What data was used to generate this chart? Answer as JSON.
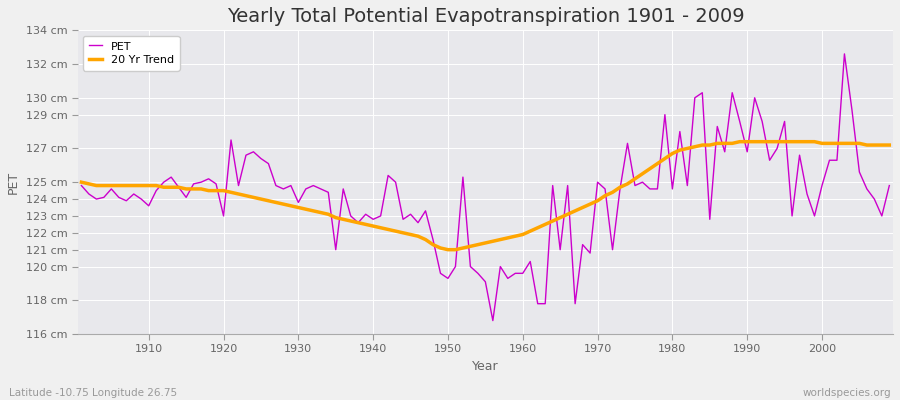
{
  "title": "Yearly Total Potential Evapotranspiration 1901 - 2009",
  "xlabel": "Year",
  "ylabel": "PET",
  "subtitle_left": "Latitude -10.75 Longitude 26.75",
  "subtitle_right": "worldspecies.org",
  "pet_color": "#cc00cc",
  "trend_color": "#FFA500",
  "bg_color": "#f0f0f0",
  "plot_bg_color": "#e8e8ec",
  "grid_color": "#ffffff",
  "years": [
    1901,
    1902,
    1903,
    1904,
    1905,
    1906,
    1907,
    1908,
    1909,
    1910,
    1911,
    1912,
    1913,
    1914,
    1915,
    1916,
    1917,
    1918,
    1919,
    1920,
    1921,
    1922,
    1923,
    1924,
    1925,
    1926,
    1927,
    1928,
    1929,
    1930,
    1931,
    1932,
    1933,
    1934,
    1935,
    1936,
    1937,
    1938,
    1939,
    1940,
    1941,
    1942,
    1943,
    1944,
    1945,
    1946,
    1947,
    1948,
    1949,
    1950,
    1951,
    1952,
    1953,
    1954,
    1955,
    1956,
    1957,
    1958,
    1959,
    1960,
    1961,
    1962,
    1963,
    1964,
    1965,
    1966,
    1967,
    1968,
    1969,
    1970,
    1971,
    1972,
    1973,
    1974,
    1975,
    1976,
    1977,
    1978,
    1979,
    1980,
    1981,
    1982,
    1983,
    1984,
    1985,
    1986,
    1987,
    1988,
    1989,
    1990,
    1991,
    1992,
    1993,
    1994,
    1995,
    1996,
    1997,
    1998,
    1999,
    2000,
    2001,
    2002,
    2003,
    2004,
    2005,
    2006,
    2007,
    2008,
    2009
  ],
  "pet_values": [
    124.8,
    124.3,
    124.0,
    124.1,
    124.6,
    124.1,
    123.9,
    124.3,
    124.0,
    123.6,
    124.5,
    125.0,
    125.3,
    124.7,
    124.1,
    124.9,
    125.0,
    125.2,
    124.9,
    123.0,
    127.5,
    124.8,
    126.6,
    126.8,
    126.4,
    126.1,
    124.8,
    124.6,
    124.8,
    123.8,
    124.6,
    124.8,
    124.6,
    124.4,
    121.0,
    124.6,
    123.0,
    122.6,
    123.1,
    122.8,
    123.0,
    125.4,
    125.0,
    122.8,
    123.1,
    122.6,
    123.3,
    121.6,
    119.6,
    119.3,
    120.0,
    125.3,
    120.0,
    119.6,
    119.1,
    116.8,
    120.0,
    119.3,
    119.6,
    119.6,
    120.3,
    117.8,
    117.8,
    124.8,
    121.0,
    124.8,
    117.8,
    121.3,
    120.8,
    125.0,
    124.6,
    121.0,
    124.6,
    127.3,
    124.8,
    125.0,
    124.6,
    124.6,
    129.0,
    124.6,
    128.0,
    124.8,
    130.0,
    130.3,
    122.8,
    128.3,
    126.8,
    130.3,
    128.6,
    126.8,
    130.0,
    128.6,
    126.3,
    127.0,
    128.6,
    123.0,
    126.6,
    124.3,
    123.0,
    124.8,
    126.3,
    126.3,
    132.6,
    129.3,
    125.6,
    124.6,
    124.0,
    123.0,
    124.8
  ],
  "trend_values": [
    125.0,
    124.9,
    124.8,
    124.8,
    124.8,
    124.8,
    124.8,
    124.8,
    124.8,
    124.8,
    124.8,
    124.7,
    124.7,
    124.7,
    124.6,
    124.6,
    124.6,
    124.5,
    124.5,
    124.5,
    124.4,
    124.3,
    124.2,
    124.1,
    124.0,
    123.9,
    123.8,
    123.7,
    123.6,
    123.5,
    123.4,
    123.3,
    123.2,
    123.1,
    122.9,
    122.8,
    122.7,
    122.6,
    122.5,
    122.4,
    122.3,
    122.2,
    122.1,
    122.0,
    121.9,
    121.8,
    121.6,
    121.3,
    121.1,
    121.0,
    121.0,
    121.1,
    121.2,
    121.3,
    121.4,
    121.5,
    121.6,
    121.7,
    121.8,
    121.9,
    122.1,
    122.3,
    122.5,
    122.7,
    122.9,
    123.1,
    123.3,
    123.5,
    123.7,
    123.9,
    124.2,
    124.4,
    124.7,
    124.9,
    125.2,
    125.5,
    125.8,
    126.1,
    126.4,
    126.7,
    126.9,
    127.0,
    127.1,
    127.2,
    127.2,
    127.3,
    127.3,
    127.3,
    127.4,
    127.4,
    127.4,
    127.4,
    127.4,
    127.4,
    127.4,
    127.4,
    127.4,
    127.4,
    127.4,
    127.3,
    127.3,
    127.3,
    127.3,
    127.3,
    127.3,
    127.2,
    127.2,
    127.2,
    127.2
  ],
  "ylim": [
    116,
    134
  ],
  "yticks": [
    116,
    118,
    120,
    121,
    122,
    123,
    124,
    125,
    127,
    129,
    130,
    132,
    134
  ],
  "ytick_labels": [
    "116 cm",
    "118 cm",
    "120 cm",
    "121 cm",
    "122 cm",
    "123 cm",
    "124 cm",
    "125 cm",
    "127 cm",
    "129 cm",
    "130 cm",
    "132 cm",
    "134 cm"
  ],
  "xticks": [
    1910,
    1920,
    1930,
    1940,
    1950,
    1960,
    1970,
    1980,
    1990,
    2000
  ],
  "legend_loc": "upper left",
  "title_fontsize": 14,
  "tick_fontsize": 8,
  "label_fontsize": 9
}
